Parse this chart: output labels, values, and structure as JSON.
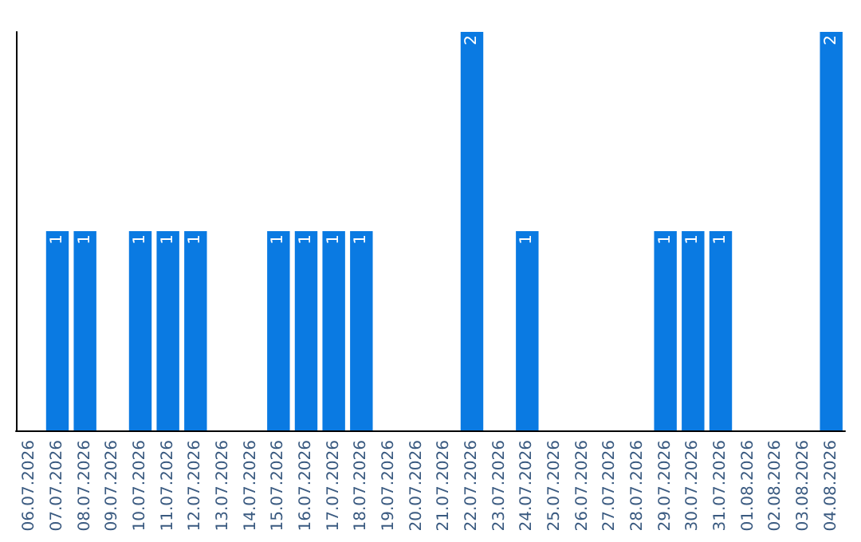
{
  "chart_data": {
    "type": "bar",
    "categories": [
      "06.07.2026",
      "07.07.2026",
      "08.07.2026",
      "09.07.2026",
      "10.07.2026",
      "11.07.2026",
      "12.07.2026",
      "13.07.2026",
      "14.07.2026",
      "15.07.2026",
      "16.07.2026",
      "17.07.2026",
      "18.07.2026",
      "19.07.2026",
      "20.07.2026",
      "21.07.2026",
      "22.07.2026",
      "23.07.2026",
      "24.07.2026",
      "25.07.2026",
      "26.07.2026",
      "27.07.2026",
      "28.07.2026",
      "29.07.2026",
      "30.07.2026",
      "31.07.2026",
      "01.08.2026",
      "02.08.2026",
      "03.08.2026",
      "04.08.2026"
    ],
    "values": [
      0,
      1,
      1,
      0,
      1,
      1,
      1,
      0,
      0,
      1,
      1,
      1,
      1,
      0,
      0,
      0,
      2,
      0,
      1,
      0,
      0,
      0,
      0,
      1,
      1,
      1,
      0,
      0,
      0,
      2
    ],
    "value_labels": [
      null,
      "1",
      "1",
      null,
      "1",
      "1",
      "1",
      null,
      null,
      "1",
      "1",
      "1",
      "1",
      null,
      null,
      null,
      "2",
      null,
      "1",
      null,
      null,
      null,
      null,
      "1",
      "1",
      "1",
      null,
      null,
      null,
      "2"
    ],
    "color": "#0a7ae2",
    "grid": false
  }
}
